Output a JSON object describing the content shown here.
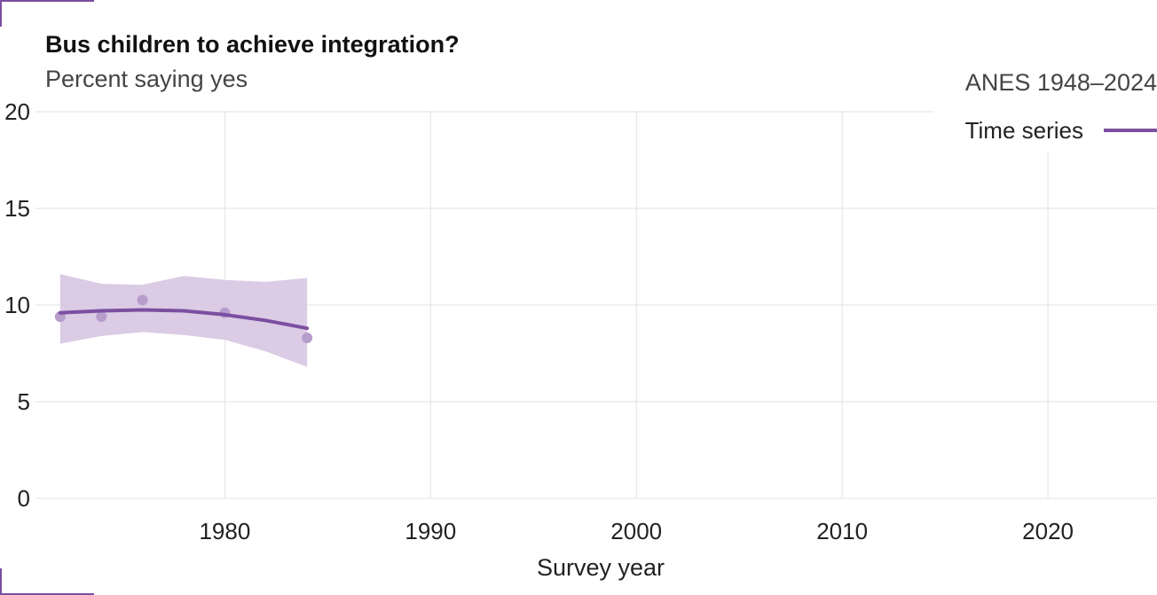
{
  "header": {
    "title": "Bus children to achieve integration?",
    "subtitle": "Percent saying yes",
    "source": "ANES 1948–2024"
  },
  "colors": {
    "series": "#7b4fa0",
    "band": "#d9c8e4",
    "points": "#b79dcc",
    "corner_accent": "#7b4fa0"
  },
  "chart_data": {
    "type": "line",
    "title": "Bus children to achieve integration?",
    "subtitle": "Percent saying yes",
    "xlabel": "Survey year",
    "ylabel": "",
    "xlim": [
      1970.8,
      2025.3
    ],
    "ylim": [
      0,
      20
    ],
    "x_ticks": [
      1980,
      1990,
      2000,
      2010,
      2020
    ],
    "y_ticks": [
      0,
      5,
      10,
      15,
      20
    ],
    "grid": true,
    "legend": {
      "placement": "top-right",
      "entries": [
        "Time series"
      ]
    },
    "series": [
      {
        "name": "Time series",
        "x": [
          1972,
          1974,
          1976,
          1978,
          1980,
          1982,
          1984
        ],
        "values": [
          9.6,
          9.7,
          9.75,
          9.7,
          9.5,
          9.2,
          8.8
        ],
        "lower": [
          8.0,
          8.4,
          8.6,
          8.45,
          8.2,
          7.6,
          6.8
        ],
        "upper": [
          11.6,
          11.1,
          11.05,
          11.5,
          11.3,
          11.2,
          11.4
        ]
      },
      {
        "name": "",
        "type": "scatter",
        "x": [
          1972,
          1974,
          1976,
          1980,
          1984
        ],
        "values": [
          9.4,
          9.4,
          10.25,
          9.6,
          8.3
        ]
      }
    ]
  }
}
